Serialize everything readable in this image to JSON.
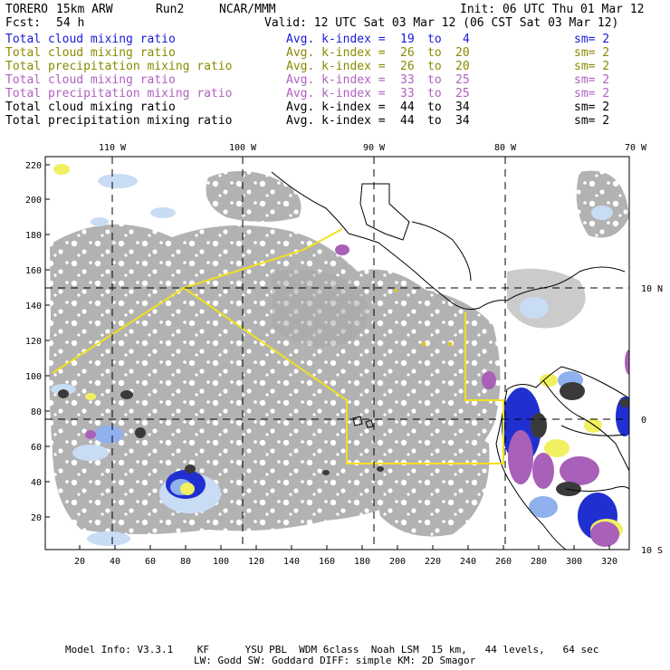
{
  "header": {
    "model": "TORERO",
    "resolution": "15km ARW",
    "run": "Run2",
    "org": "NCAR/MMM",
    "init": "Init: 06 UTC Thu 01 Mar 12",
    "fcst_label": "Fcst:",
    "fcst_value": "54 h",
    "valid": "Valid: 12 UTC Sat 03 Mar 12 (06 CST Sat 03 Mar 12)"
  },
  "legend": [
    {
      "field": "Total cloud mixing ratio",
      "index": "Avg. k-index =",
      "from": "19",
      "to_word": "to",
      "to": "4",
      "sm": "sm= 2",
      "color": "#1a1ad8"
    },
    {
      "field": "Total cloud mixing ratio",
      "index": "Avg. k-index =",
      "from": "26",
      "to_word": "to",
      "to": "20",
      "sm": "sm= 2",
      "color": "#8a8a00"
    },
    {
      "field": "Total precipitation mixing ratio",
      "index": "Avg. k-index =",
      "from": "26",
      "to_word": "to",
      "to": "20",
      "sm": "sm= 2",
      "color": "#8a8a00"
    },
    {
      "field": "Total cloud mixing ratio",
      "index": "Avg. k-index =",
      "from": "33",
      "to_word": "to",
      "to": "25",
      "sm": "sm= 2",
      "color": "#b060c0"
    },
    {
      "field": "Total precipitation mixing ratio",
      "index": "Avg. k-index =",
      "from": "33",
      "to_word": "to",
      "to": "25",
      "sm": "sm= 2",
      "color": "#b060c0"
    },
    {
      "field": "Total cloud mixing ratio",
      "index": "Avg. k-index =",
      "from": "44",
      "to_word": "to",
      "to": "34",
      "sm": "sm= 2",
      "color": "#000000"
    },
    {
      "field": "Total precipitation mixing ratio",
      "index": "Avg. k-index =",
      "from": "44",
      "to_word": "to",
      "to": "34",
      "sm": "sm= 2",
      "color": "#000000"
    }
  ],
  "map": {
    "top_labels": [
      "110 W",
      "100 W",
      "90 W",
      "80 W",
      "70 W"
    ],
    "right_labels": [
      "10 N",
      "0",
      "10 S"
    ],
    "y_ticks": [
      "220",
      "200",
      "180",
      "160",
      "140",
      "120",
      "100",
      "80",
      "60",
      "40",
      "20"
    ],
    "x_ticks": [
      "20",
      "40",
      "60",
      "80",
      "100",
      "120",
      "140",
      "160",
      "180",
      "200",
      "220",
      "240",
      "260",
      "280",
      "300",
      "320"
    ],
    "colors": {
      "cloud_gray": "#a8a8a8",
      "light_blue": "#c8dcf4",
      "mid_blue": "#90b0ee",
      "deep_blue": "#2030d0",
      "yellow": "#f0f060",
      "purple": "#a860b8",
      "dark": "#3a3a3a",
      "track": "#f0e020"
    }
  },
  "footer": {
    "line1": "Model Info: V3.3.1    KF      YSU PBL  WDM 6class  Noah LSM  15 km,   44 levels,   64 sec",
    "line2": "LW: Godd SW: Goddard DIFF: simple KM: 2D Smagor"
  }
}
